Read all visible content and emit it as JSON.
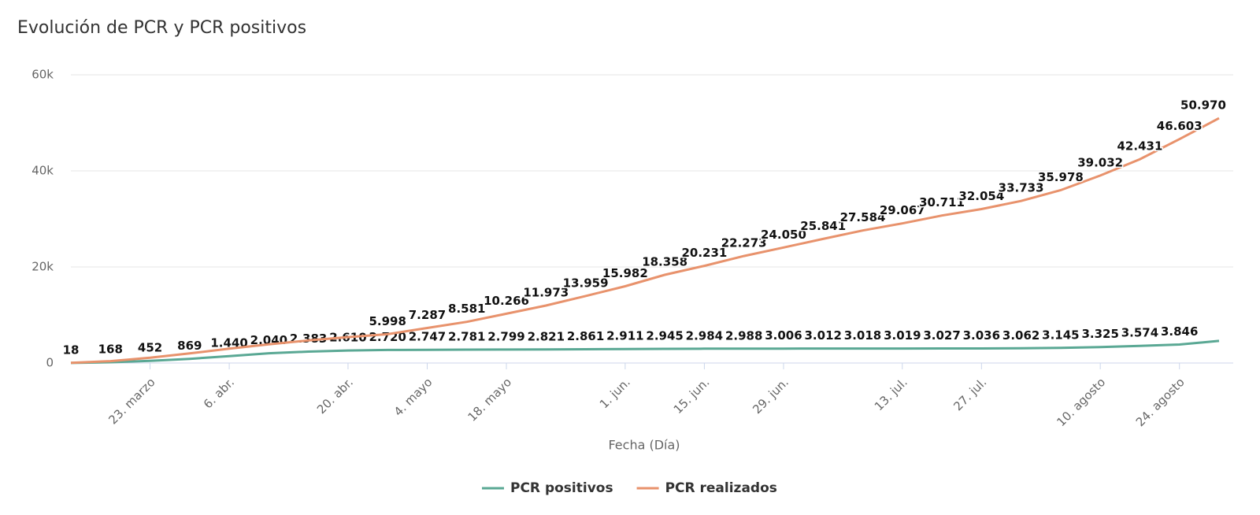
{
  "chart_data": {
    "type": "line",
    "title": "Evolución de PCR y PCR positivos",
    "x_label": "Fecha (Día)",
    "categories": [
      null,
      null,
      "23. marzo",
      null,
      "6. abr.",
      null,
      null,
      "20. abr.",
      null,
      "4. mayo",
      null,
      "18. mayo",
      null,
      null,
      "1. jun.",
      null,
      "15. jun.",
      null,
      "29. jun.",
      null,
      null,
      "13. jul.",
      null,
      "27. jul.",
      null,
      null,
      "10. agosto",
      null,
      "24. agosto",
      null
    ],
    "series": [
      {
        "name": "PCR positivos",
        "color": "#5aa894",
        "values": [
          18,
          168,
          452,
          869,
          1440,
          2040,
          2383,
          2610,
          2720,
          2747,
          2781,
          2799,
          2821,
          2861,
          2911,
          2945,
          2984,
          2988,
          3006,
          3012,
          3018,
          3019,
          3027,
          3036,
          3062,
          3145,
          3325,
          3574,
          3846,
          4600
        ],
        "value_labels": [
          "18",
          "168",
          "452",
          "869",
          "1.440",
          "2.040",
          "2.383",
          "2.610",
          "2.720",
          "2.747",
          "2.781",
          "2.799",
          "2.821",
          "2.861",
          "2.911",
          "2.945",
          "2.984",
          "2.988",
          "3.006",
          "3.012",
          "3.018",
          "3.019",
          "3.027",
          "3.036",
          "3.062",
          "3.145",
          "3.325",
          "3.574",
          "3.846",
          null
        ]
      },
      {
        "name": "PCR realizados",
        "color": "#e8926c",
        "values": [
          50,
          400,
          1100,
          2000,
          3000,
          3900,
          4700,
          5400,
          5998,
          7287,
          8581,
          10266,
          11973,
          13959,
          15982,
          18358,
          20231,
          22273,
          24050,
          25841,
          27584,
          29067,
          30711,
          32054,
          33733,
          35978,
          39032,
          42431,
          46603,
          50970
        ],
        "value_labels": [
          null,
          null,
          null,
          null,
          null,
          null,
          null,
          null,
          "5.998",
          "7.287",
          "8.581",
          "10.266",
          "11.973",
          "13.959",
          "15.982",
          "18.358",
          "20.231",
          "22.273",
          "24.050",
          "25.841",
          "27.584",
          "29.067",
          "30.711",
          "32.054",
          "33.733",
          "35.978",
          "39.032",
          "42.431",
          "46.603",
          "50.970"
        ]
      }
    ],
    "ylim": [
      0,
      60000
    ],
    "yticks": [
      0,
      {
        "value": 20000,
        "label": "20k"
      },
      {
        "value": 40000,
        "label": "40k"
      },
      {
        "value": 60000,
        "label": "60k"
      }
    ],
    "grid": true
  }
}
